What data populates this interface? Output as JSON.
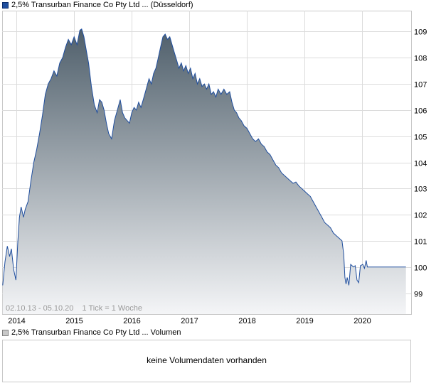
{
  "legend_main": {
    "label": "2,5% Transurban Finance Co Pty Ltd ... (Düsseldorf)"
  },
  "legend_volume": {
    "label": "2,5% Transurban Finance Co Pty Ltd ... Volumen"
  },
  "volume_message": "keine Volumendaten vorhanden",
  "annotation": {
    "range": "02.10.13 - 05.10.20",
    "tick": "1 Tick = 1 Woche"
  },
  "colors": {
    "line": "#1f4e9e",
    "fill_top": "#4f5f6b",
    "fill_bottom": "#f4f5f7",
    "grid": "#dcdcdc"
  },
  "chart_data": {
    "type": "area",
    "title": "2,5% Transurban Finance Co Pty Ltd ... (Düsseldorf)",
    "xlabel": "",
    "ylabel": "",
    "x_ticks": [
      2014,
      2015,
      2016,
      2017,
      2018,
      2019,
      2020
    ],
    "x_range": [
      2013.75,
      2020.85
    ],
    "y_ticks": [
      99,
      100,
      101,
      102,
      103,
      104,
      105,
      106,
      107,
      108,
      109
    ],
    "ylim": [
      98.2,
      109.8
    ],
    "grid": true,
    "legend": "top-left",
    "series": [
      {
        "name": "2,5% Transurban Finance Co Pty Ltd ... (Düsseldorf)",
        "points": [
          [
            2013.76,
            99.3
          ],
          [
            2013.8,
            100.2
          ],
          [
            2013.84,
            100.8
          ],
          [
            2013.88,
            100.4
          ],
          [
            2013.91,
            100.7
          ],
          [
            2013.95,
            99.9
          ],
          [
            2013.99,
            99.5
          ],
          [
            2014.02,
            100.9
          ],
          [
            2014.05,
            101.9
          ],
          [
            2014.08,
            102.3
          ],
          [
            2014.12,
            101.9
          ],
          [
            2014.15,
            102.2
          ],
          [
            2014.2,
            102.5
          ],
          [
            2014.25,
            103.3
          ],
          [
            2014.3,
            104.0
          ],
          [
            2014.35,
            104.5
          ],
          [
            2014.4,
            105.1
          ],
          [
            2014.45,
            105.8
          ],
          [
            2014.5,
            106.6
          ],
          [
            2014.55,
            107.0
          ],
          [
            2014.6,
            107.2
          ],
          [
            2014.65,
            107.5
          ],
          [
            2014.7,
            107.3
          ],
          [
            2014.75,
            107.8
          ],
          [
            2014.8,
            108.0
          ],
          [
            2014.85,
            108.4
          ],
          [
            2014.9,
            108.7
          ],
          [
            2014.95,
            108.5
          ],
          [
            2015.0,
            108.8
          ],
          [
            2015.05,
            108.5
          ],
          [
            2015.1,
            109.05
          ],
          [
            2015.13,
            109.1
          ],
          [
            2015.17,
            108.8
          ],
          [
            2015.21,
            108.3
          ],
          [
            2015.25,
            107.8
          ],
          [
            2015.3,
            106.9
          ],
          [
            2015.35,
            106.2
          ],
          [
            2015.4,
            105.9
          ],
          [
            2015.44,
            106.4
          ],
          [
            2015.48,
            106.3
          ],
          [
            2015.52,
            106.0
          ],
          [
            2015.56,
            105.5
          ],
          [
            2015.6,
            105.1
          ],
          [
            2015.65,
            104.9
          ],
          [
            2015.7,
            105.6
          ],
          [
            2015.75,
            106.0
          ],
          [
            2015.8,
            106.4
          ],
          [
            2015.84,
            105.9
          ],
          [
            2015.88,
            105.7
          ],
          [
            2015.92,
            105.6
          ],
          [
            2015.96,
            105.5
          ],
          [
            2016.0,
            105.9
          ],
          [
            2016.04,
            106.1
          ],
          [
            2016.08,
            106.0
          ],
          [
            2016.12,
            106.3
          ],
          [
            2016.16,
            106.1
          ],
          [
            2016.2,
            106.4
          ],
          [
            2016.25,
            106.8
          ],
          [
            2016.3,
            107.2
          ],
          [
            2016.34,
            107.0
          ],
          [
            2016.38,
            107.4
          ],
          [
            2016.42,
            107.6
          ],
          [
            2016.46,
            108.0
          ],
          [
            2016.5,
            108.4
          ],
          [
            2016.54,
            108.8
          ],
          [
            2016.58,
            108.9
          ],
          [
            2016.62,
            108.7
          ],
          [
            2016.66,
            108.8
          ],
          [
            2016.7,
            108.5
          ],
          [
            2016.74,
            108.2
          ],
          [
            2016.78,
            107.9
          ],
          [
            2016.82,
            107.6
          ],
          [
            2016.86,
            107.8
          ],
          [
            2016.9,
            107.5
          ],
          [
            2016.94,
            107.7
          ],
          [
            2016.98,
            107.4
          ],
          [
            2017.02,
            107.6
          ],
          [
            2017.06,
            107.2
          ],
          [
            2017.1,
            107.4
          ],
          [
            2017.14,
            107.0
          ],
          [
            2017.18,
            107.2
          ],
          [
            2017.22,
            106.9
          ],
          [
            2017.26,
            107.0
          ],
          [
            2017.3,
            106.8
          ],
          [
            2017.34,
            107.0
          ],
          [
            2017.38,
            106.6
          ],
          [
            2017.42,
            106.7
          ],
          [
            2017.46,
            106.5
          ],
          [
            2017.5,
            106.8
          ],
          [
            2017.55,
            106.6
          ],
          [
            2017.6,
            106.8
          ],
          [
            2017.65,
            106.6
          ],
          [
            2017.7,
            106.7
          ],
          [
            2017.74,
            106.3
          ],
          [
            2017.78,
            106.0
          ],
          [
            2017.82,
            105.9
          ],
          [
            2017.86,
            105.7
          ],
          [
            2017.9,
            105.6
          ],
          [
            2017.95,
            105.4
          ],
          [
            2018.0,
            105.3
          ],
          [
            2018.05,
            105.1
          ],
          [
            2018.1,
            104.9
          ],
          [
            2018.15,
            104.8
          ],
          [
            2018.2,
            104.9
          ],
          [
            2018.25,
            104.7
          ],
          [
            2018.3,
            104.6
          ],
          [
            2018.35,
            104.4
          ],
          [
            2018.4,
            104.3
          ],
          [
            2018.45,
            104.1
          ],
          [
            2018.5,
            103.9
          ],
          [
            2018.55,
            103.8
          ],
          [
            2018.6,
            103.6
          ],
          [
            2018.65,
            103.5
          ],
          [
            2018.7,
            103.4
          ],
          [
            2018.75,
            103.3
          ],
          [
            2018.8,
            103.2
          ],
          [
            2018.85,
            103.25
          ],
          [
            2018.9,
            103.1
          ],
          [
            2018.95,
            103.0
          ],
          [
            2019.0,
            102.9
          ],
          [
            2019.05,
            102.8
          ],
          [
            2019.1,
            102.7
          ],
          [
            2019.15,
            102.5
          ],
          [
            2019.2,
            102.3
          ],
          [
            2019.25,
            102.1
          ],
          [
            2019.3,
            101.9
          ],
          [
            2019.35,
            101.7
          ],
          [
            2019.4,
            101.6
          ],
          [
            2019.45,
            101.5
          ],
          [
            2019.5,
            101.3
          ],
          [
            2019.55,
            101.2
          ],
          [
            2019.6,
            101.1
          ],
          [
            2019.65,
            101.0
          ],
          [
            2019.68,
            100.5
          ],
          [
            2019.7,
            99.6
          ],
          [
            2019.72,
            99.35
          ],
          [
            2019.74,
            99.6
          ],
          [
            2019.77,
            99.3
          ],
          [
            2019.8,
            100.1
          ],
          [
            2019.85,
            100.0
          ],
          [
            2019.88,
            100.05
          ],
          [
            2019.91,
            99.5
          ],
          [
            2019.94,
            99.4
          ],
          [
            2019.97,
            100.05
          ],
          [
            2020.01,
            100.1
          ],
          [
            2020.04,
            99.95
          ],
          [
            2020.07,
            100.25
          ],
          [
            2020.09,
            100.0
          ],
          [
            2020.12,
            100.0
          ],
          [
            2020.2,
            100.0
          ],
          [
            2020.3,
            100.0
          ],
          [
            2020.4,
            100.0
          ],
          [
            2020.5,
            100.0
          ],
          [
            2020.6,
            100.0
          ],
          [
            2020.7,
            100.0
          ],
          [
            2020.76,
            100.0
          ]
        ]
      }
    ]
  }
}
